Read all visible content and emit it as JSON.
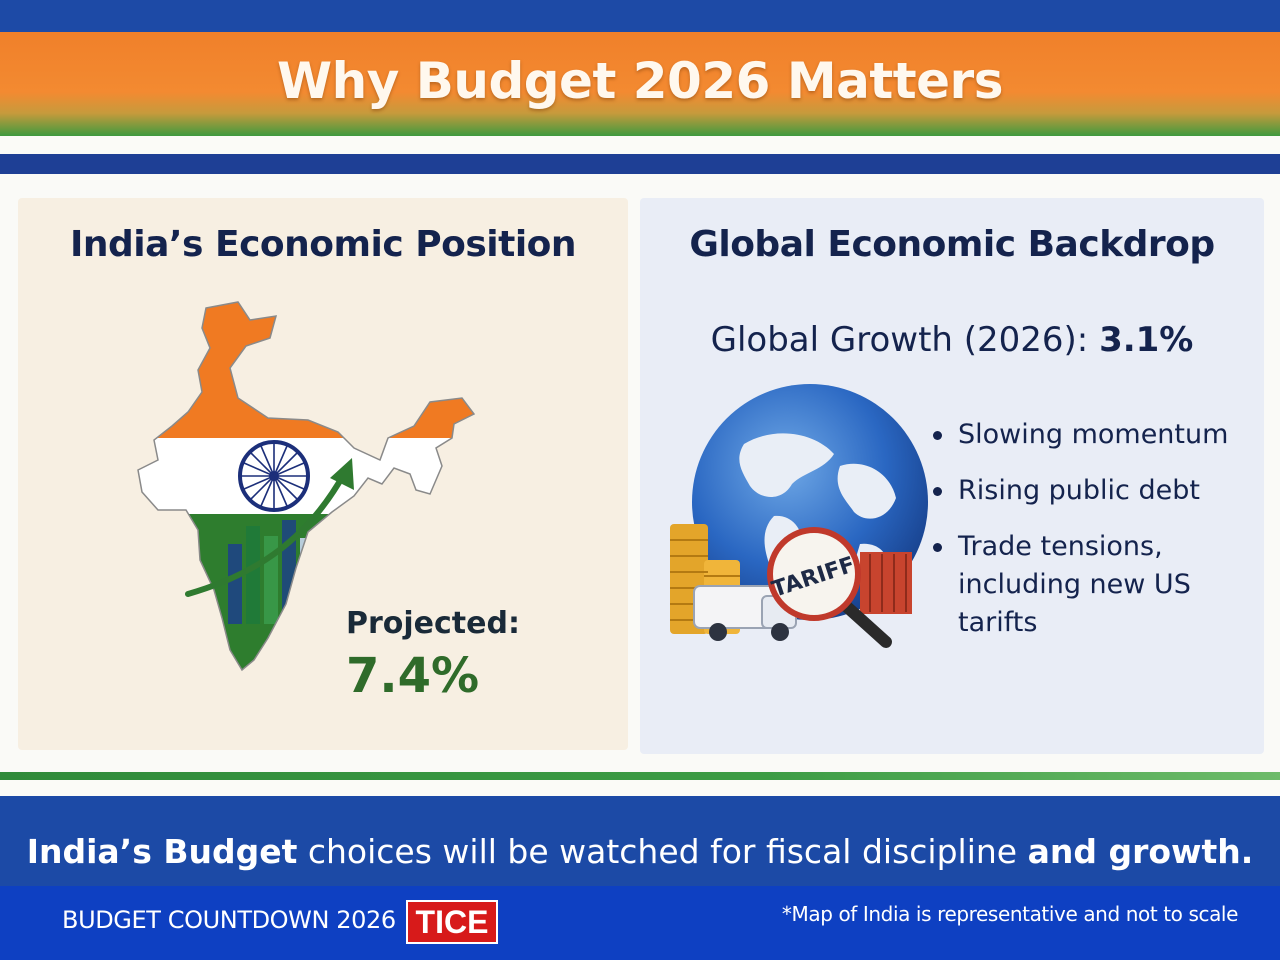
{
  "header": {
    "title": "Why Budget 2026 Matters"
  },
  "left_panel": {
    "heading": "India’s Economic Position",
    "projected_label": "Projected:",
    "projected_value": "7.4%",
    "map_icon": "india-map-tricolour-icon",
    "chart_icon": "rising-growth-arrow-icon"
  },
  "right_panel": {
    "heading": "Global Economic Backdrop",
    "growth_label": "Global Growth (2026): ",
    "growth_value": "3.1%",
    "globe_icon": "globe-trade-icon",
    "tariff_text": "TARIFF",
    "bullets": [
      "Slowing momentum",
      "Rising public debt",
      "Trade tensions, including new US tarifts"
    ]
  },
  "bottom_banner": {
    "part1": "India’s Budget",
    "part2": " choices will be watched for fiscal discipline ",
    "part3": "and growth."
  },
  "footer": {
    "countdown": "BUDGET COUNTDOWN 2026",
    "logo_text": "TICE",
    "disclaimer": "*Map of India is representative and not to scale"
  },
  "colors": {
    "saffron": "#f38a31",
    "green": "#2f8a3a",
    "navy": "#14234d",
    "blue": "#1c4aa6",
    "logo_red": "#d71a1a"
  }
}
